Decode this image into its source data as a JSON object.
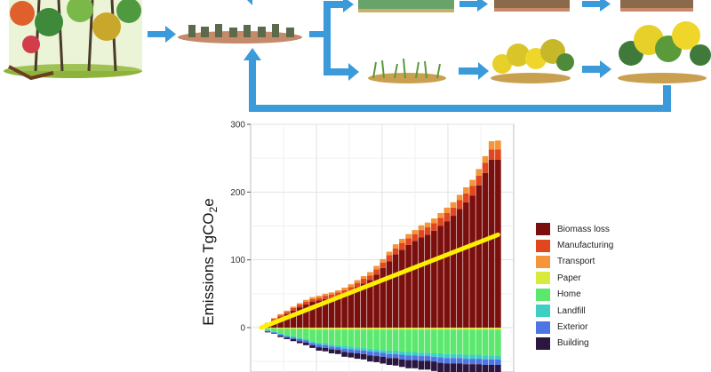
{
  "chart_data": {
    "type": "bar",
    "stacked": true,
    "ylabel": "Emissions TgCO2e",
    "ylabel_parts": {
      "main": "Emissions TgCO",
      "sub": "2",
      "tail": "e"
    },
    "ylim": [
      -60,
      300
    ],
    "y_ticks": [
      0,
      100,
      200,
      300
    ],
    "grid": true,
    "legend_position": "right",
    "n_bars": 38,
    "series": [
      {
        "name": "Biomass loss",
        "color": "#7b0f0d",
        "values": [
          0,
          4,
          10,
          15,
          20,
          25,
          30,
          34,
          38,
          40,
          42,
          44,
          47,
          50,
          54,
          60,
          65,
          70,
          78,
          88,
          98,
          108,
          115,
          122,
          128,
          133,
          137,
          143,
          150,
          157,
          165,
          175,
          185,
          195,
          210,
          228,
          248,
          248
        ]
      },
      {
        "name": "Manufacturing",
        "color": "#e2461e",
        "values": [
          0,
          2,
          3,
          3,
          3,
          4,
          4,
          4,
          4,
          4,
          5,
          5,
          5,
          5,
          6,
          6,
          7,
          7,
          8,
          8,
          9,
          9,
          10,
          10,
          10,
          11,
          11,
          11,
          12,
          12,
          12,
          13,
          13,
          14,
          14,
          15,
          15,
          15
        ]
      },
      {
        "name": "Transport",
        "color": "#f4953a",
        "values": [
          0,
          1,
          1,
          2,
          2,
          2,
          2,
          3,
          3,
          3,
          3,
          3,
          3,
          4,
          4,
          4,
          4,
          5,
          5,
          5,
          5,
          6,
          6,
          6,
          6,
          7,
          7,
          7,
          7,
          8,
          8,
          8,
          9,
          9,
          10,
          10,
          12,
          13
        ]
      },
      {
        "name": "Paper",
        "color": "#d8ea3c",
        "values": [
          0,
          -1,
          -1,
          -2,
          -2,
          -2,
          -2,
          -2,
          -3,
          -3,
          -3,
          -3,
          -3,
          -3,
          -3,
          -3,
          -3,
          -3,
          -3,
          -3,
          -3,
          -3,
          -3,
          -3,
          -3,
          -3,
          -3,
          -3,
          -3,
          -3,
          -3,
          -3,
          -3,
          -3,
          -3,
          -3,
          -3,
          -3
        ]
      },
      {
        "name": "Home",
        "color": "#5ce86f",
        "values": [
          0,
          -3,
          -5,
          -7,
          -9,
          -11,
          -13,
          -15,
          -17,
          -19,
          -20,
          -22,
          -23,
          -24,
          -25,
          -26,
          -27,
          -28,
          -29,
          -30,
          -31,
          -31,
          -32,
          -33,
          -33,
          -34,
          -34,
          -35,
          -35,
          -36,
          -36,
          -36,
          -37,
          -37,
          -37,
          -38,
          -38,
          -38
        ]
      },
      {
        "name": "Landfill",
        "color": "#3ccfc2",
        "values": [
          0,
          -1,
          -1,
          -1,
          -2,
          -2,
          -2,
          -2,
          -3,
          -3,
          -3,
          -3,
          -3,
          -4,
          -4,
          -4,
          -4,
          -4,
          -4,
          -4,
          -5,
          -5,
          -5,
          -5,
          -5,
          -5,
          -5,
          -5,
          -6,
          -6,
          -6,
          -6,
          -6,
          -6,
          -6,
          -6,
          -6,
          -6
        ]
      },
      {
        "name": "Exterior",
        "color": "#4f74e3",
        "values": [
          0,
          -1,
          -1,
          -2,
          -2,
          -2,
          -3,
          -3,
          -3,
          -4,
          -4,
          -4,
          -4,
          -5,
          -5,
          -5,
          -5,
          -6,
          -6,
          -6,
          -6,
          -6,
          -7,
          -7,
          -7,
          -7,
          -7,
          -7,
          -8,
          -8,
          -8,
          -8,
          -8,
          -8,
          -8,
          -8,
          -8,
          -8
        ]
      },
      {
        "name": "Building",
        "color": "#2b1640",
        "values": [
          0,
          -1,
          -1,
          -2,
          -2,
          -3,
          -3,
          -4,
          -4,
          -5,
          -5,
          -6,
          -6,
          -7,
          -7,
          -8,
          -8,
          -9,
          -9,
          -10,
          -10,
          -11,
          -11,
          -12,
          -12,
          -13,
          -13,
          -14,
          -14,
          -15,
          -15,
          -16,
          -16,
          -17,
          -17,
          -18,
          -18,
          -18
        ]
      }
    ],
    "trend_line": {
      "color": "#ffef00",
      "from": [
        0,
        0
      ],
      "to": [
        37,
        137
      ]
    }
  },
  "diagram": {
    "arrow_color": "#3b9ad9",
    "illustrations": [
      "forest",
      "harvested-logs",
      "young-plantation",
      "mature-plantation",
      "harvested-plantation",
      "regrowing-shrubs",
      "young-aspen-stand",
      "mature-mixed-forest"
    ]
  }
}
